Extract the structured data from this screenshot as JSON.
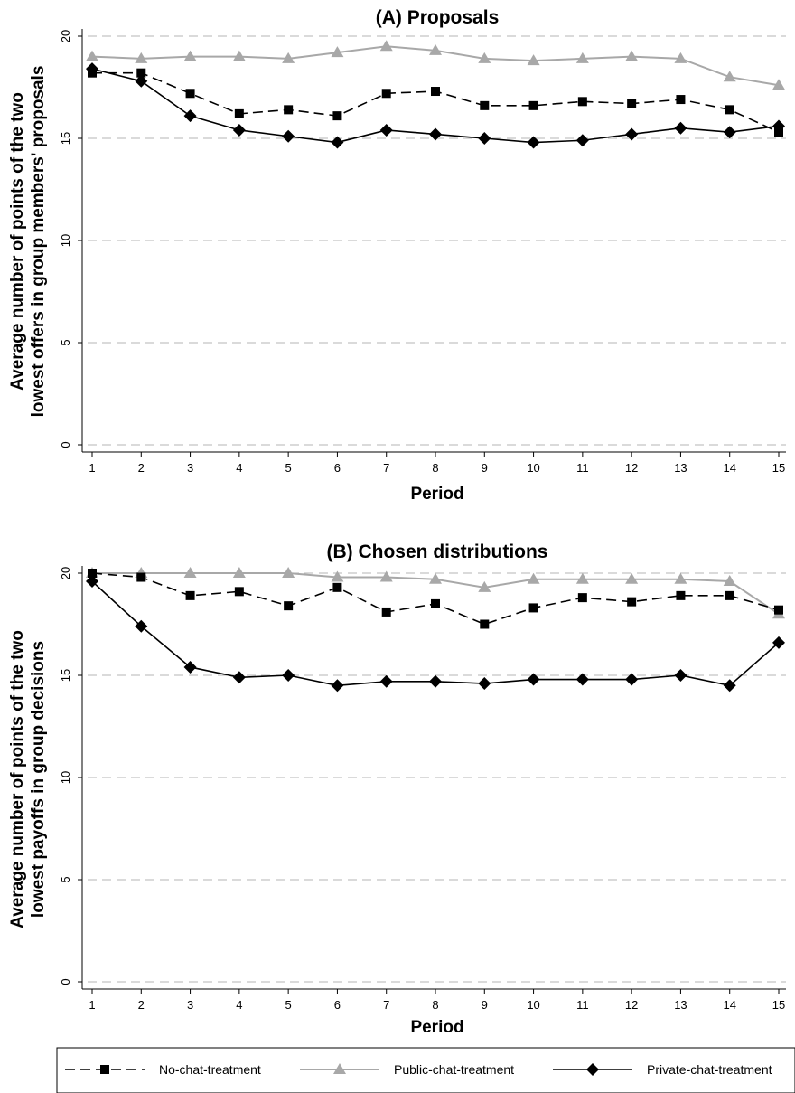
{
  "chart_data": [
    {
      "type": "line",
      "title": "(A) Proposals",
      "xlabel": "Period",
      "ylabel": [
        "Average number of points of the two",
        "lowest offers in group members' proposals"
      ],
      "x": [
        1,
        2,
        3,
        4,
        5,
        6,
        7,
        8,
        9,
        10,
        11,
        12,
        13,
        14,
        15
      ],
      "xlim": [
        1,
        15
      ],
      "ylim": [
        0,
        20
      ],
      "yticks": [
        0,
        5,
        10,
        15,
        20
      ],
      "grid": true,
      "series": [
        {
          "name": "No-chat-treatment",
          "values": [
            18.2,
            18.2,
            17.2,
            16.2,
            16.4,
            16.1,
            17.2,
            17.3,
            16.6,
            16.6,
            16.8,
            16.7,
            16.9,
            16.4,
            15.3
          ]
        },
        {
          "name": "Public-chat-treatment",
          "values": [
            19.0,
            18.9,
            19.0,
            19.0,
            18.9,
            19.2,
            19.5,
            19.3,
            18.9,
            18.8,
            18.9,
            19.0,
            18.9,
            18.0,
            17.6
          ]
        },
        {
          "name": "Private-chat-treatment",
          "values": [
            18.4,
            17.8,
            16.1,
            15.4,
            15.1,
            14.8,
            15.4,
            15.2,
            15.0,
            14.8,
            14.9,
            15.2,
            15.5,
            15.3,
            15.6
          ]
        }
      ]
    },
    {
      "type": "line",
      "title": "(B) Chosen distributions",
      "xlabel": "Period",
      "ylabel": [
        "Average number of points of the two",
        "lowest payoffs in group decisions"
      ],
      "x": [
        1,
        2,
        3,
        4,
        5,
        6,
        7,
        8,
        9,
        10,
        11,
        12,
        13,
        14,
        15
      ],
      "xlim": [
        1,
        15
      ],
      "ylim": [
        0,
        20
      ],
      "yticks": [
        0,
        5,
        10,
        15,
        20
      ],
      "grid": true,
      "series": [
        {
          "name": "No-chat-treatment",
          "values": [
            20.0,
            19.8,
            18.9,
            19.1,
            18.4,
            19.3,
            18.1,
            18.5,
            17.5,
            18.3,
            18.8,
            18.6,
            18.9,
            18.9,
            18.2
          ]
        },
        {
          "name": "Public-chat-treatment",
          "values": [
            20.0,
            20.0,
            20.0,
            20.0,
            20.0,
            19.8,
            19.8,
            19.7,
            19.3,
            19.7,
            19.7,
            19.7,
            19.7,
            19.6,
            18.0
          ]
        },
        {
          "name": "Private-chat-treatment",
          "values": [
            19.6,
            17.4,
            15.4,
            14.9,
            15.0,
            14.5,
            14.7,
            14.7,
            14.6,
            14.8,
            14.8,
            14.8,
            15.0,
            14.5,
            16.6
          ]
        }
      ]
    }
  ],
  "legend": {
    "placement": "bottom",
    "items": [
      {
        "label": "No-chat-treatment"
      },
      {
        "label": "Public-chat-treatment"
      },
      {
        "label": "Private-chat-treatment"
      }
    ]
  },
  "styles": {
    "No-chat-treatment": {
      "color": "#000000",
      "dash": "dashed",
      "marker": "square"
    },
    "Public-chat-treatment": {
      "color": "#a8a8a8",
      "dash": "solid",
      "marker": "triangle"
    },
    "Private-chat-treatment": {
      "color": "#000000",
      "dash": "solid",
      "marker": "diamond"
    },
    "grid_color": "#b5b5b5"
  }
}
